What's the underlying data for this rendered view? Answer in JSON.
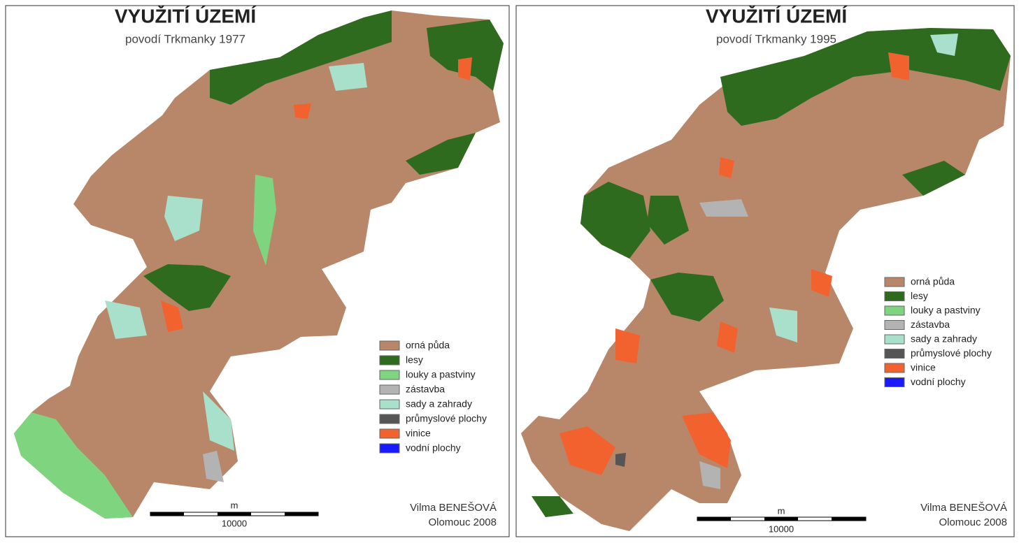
{
  "panels": [
    {
      "title": "VYUŽITÍ ÚZEMÍ",
      "subtitle": "povodí Trkmanky 1977",
      "legend": [
        {
          "label": "orná půda",
          "color": "#b8876a"
        },
        {
          "label": "lesy",
          "color": "#2e6b1e"
        },
        {
          "label": "louky a pastviny",
          "color": "#7fd47f"
        },
        {
          "label": "zástavba",
          "color": "#b3b3b3"
        },
        {
          "label": "sady a zahrady",
          "color": "#a8e0cc"
        },
        {
          "label": "průmyslové plochy",
          "color": "#555555"
        },
        {
          "label": "vinice",
          "color": "#f2622e"
        },
        {
          "label": "vodní plochy",
          "color": "#1a1aff"
        }
      ],
      "scale": {
        "unit": "m",
        "label": "10000"
      },
      "author": "Vilma BENEŠOVÁ",
      "place": "Olomouc 2008"
    },
    {
      "title": "VYUŽITÍ ÚZEMÍ",
      "subtitle": "povodí Trkmanky 1995",
      "legend": [
        {
          "label": "orná půda",
          "color": "#b8876a"
        },
        {
          "label": "lesy",
          "color": "#2e6b1e"
        },
        {
          "label": "louky a pastviny",
          "color": "#7fd47f"
        },
        {
          "label": "zástavba",
          "color": "#b3b3b3"
        },
        {
          "label": "sady a zahrady",
          "color": "#a8e0cc"
        },
        {
          "label": "průmyslové plochy",
          "color": "#555555"
        },
        {
          "label": "vinice",
          "color": "#f2622e"
        },
        {
          "label": "vodní plochy",
          "color": "#1a1aff"
        }
      ],
      "scale": {
        "unit": "m",
        "label": "10000"
      },
      "author": "Vilma BENEŠOVÁ",
      "place": "Olomouc 2008"
    }
  ]
}
